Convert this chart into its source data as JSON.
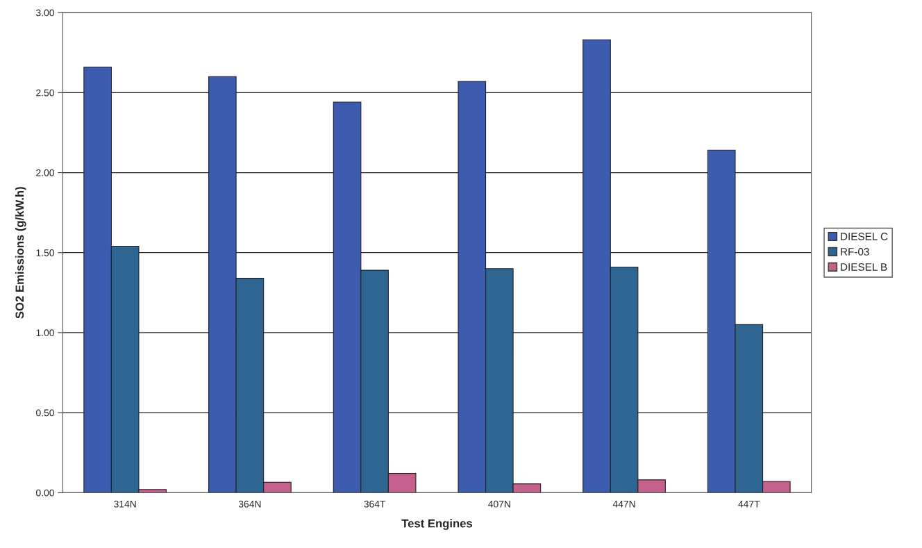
{
  "chart_data": {
    "type": "bar",
    "xlabel": "Test Engines",
    "ylabel": "SO2 Emissions (g/kW.h)",
    "categories": [
      "314N",
      "364N",
      "364T",
      "407N",
      "447N",
      "447T"
    ],
    "series": [
      {
        "name": "DIESEL C",
        "color": "#3d5cb0",
        "values": [
          2.66,
          2.6,
          2.44,
          2.57,
          2.83,
          2.14
        ]
      },
      {
        "name": "RF-03",
        "color": "#2f6591",
        "values": [
          1.54,
          1.34,
          1.39,
          1.4,
          1.41,
          1.05
        ]
      },
      {
        "name": "DIESEL B",
        "color": "#c4618c",
        "values": [
          0.02,
          0.065,
          0.12,
          0.055,
          0.08,
          0.07
        ]
      }
    ],
    "ylim": [
      0,
      3
    ],
    "yticks": [
      {
        "value": 0,
        "label": "0.00"
      },
      {
        "value": 0.5,
        "label": "0.50"
      },
      {
        "value": 1,
        "label": "1.00"
      },
      {
        "value": 1.5,
        "label": "1.50"
      },
      {
        "value": 2,
        "label": "2.00"
      },
      {
        "value": 2.5,
        "label": "2.50"
      },
      {
        "value": 3,
        "label": "3.00"
      }
    ],
    "grid": "y",
    "legend": "right"
  }
}
